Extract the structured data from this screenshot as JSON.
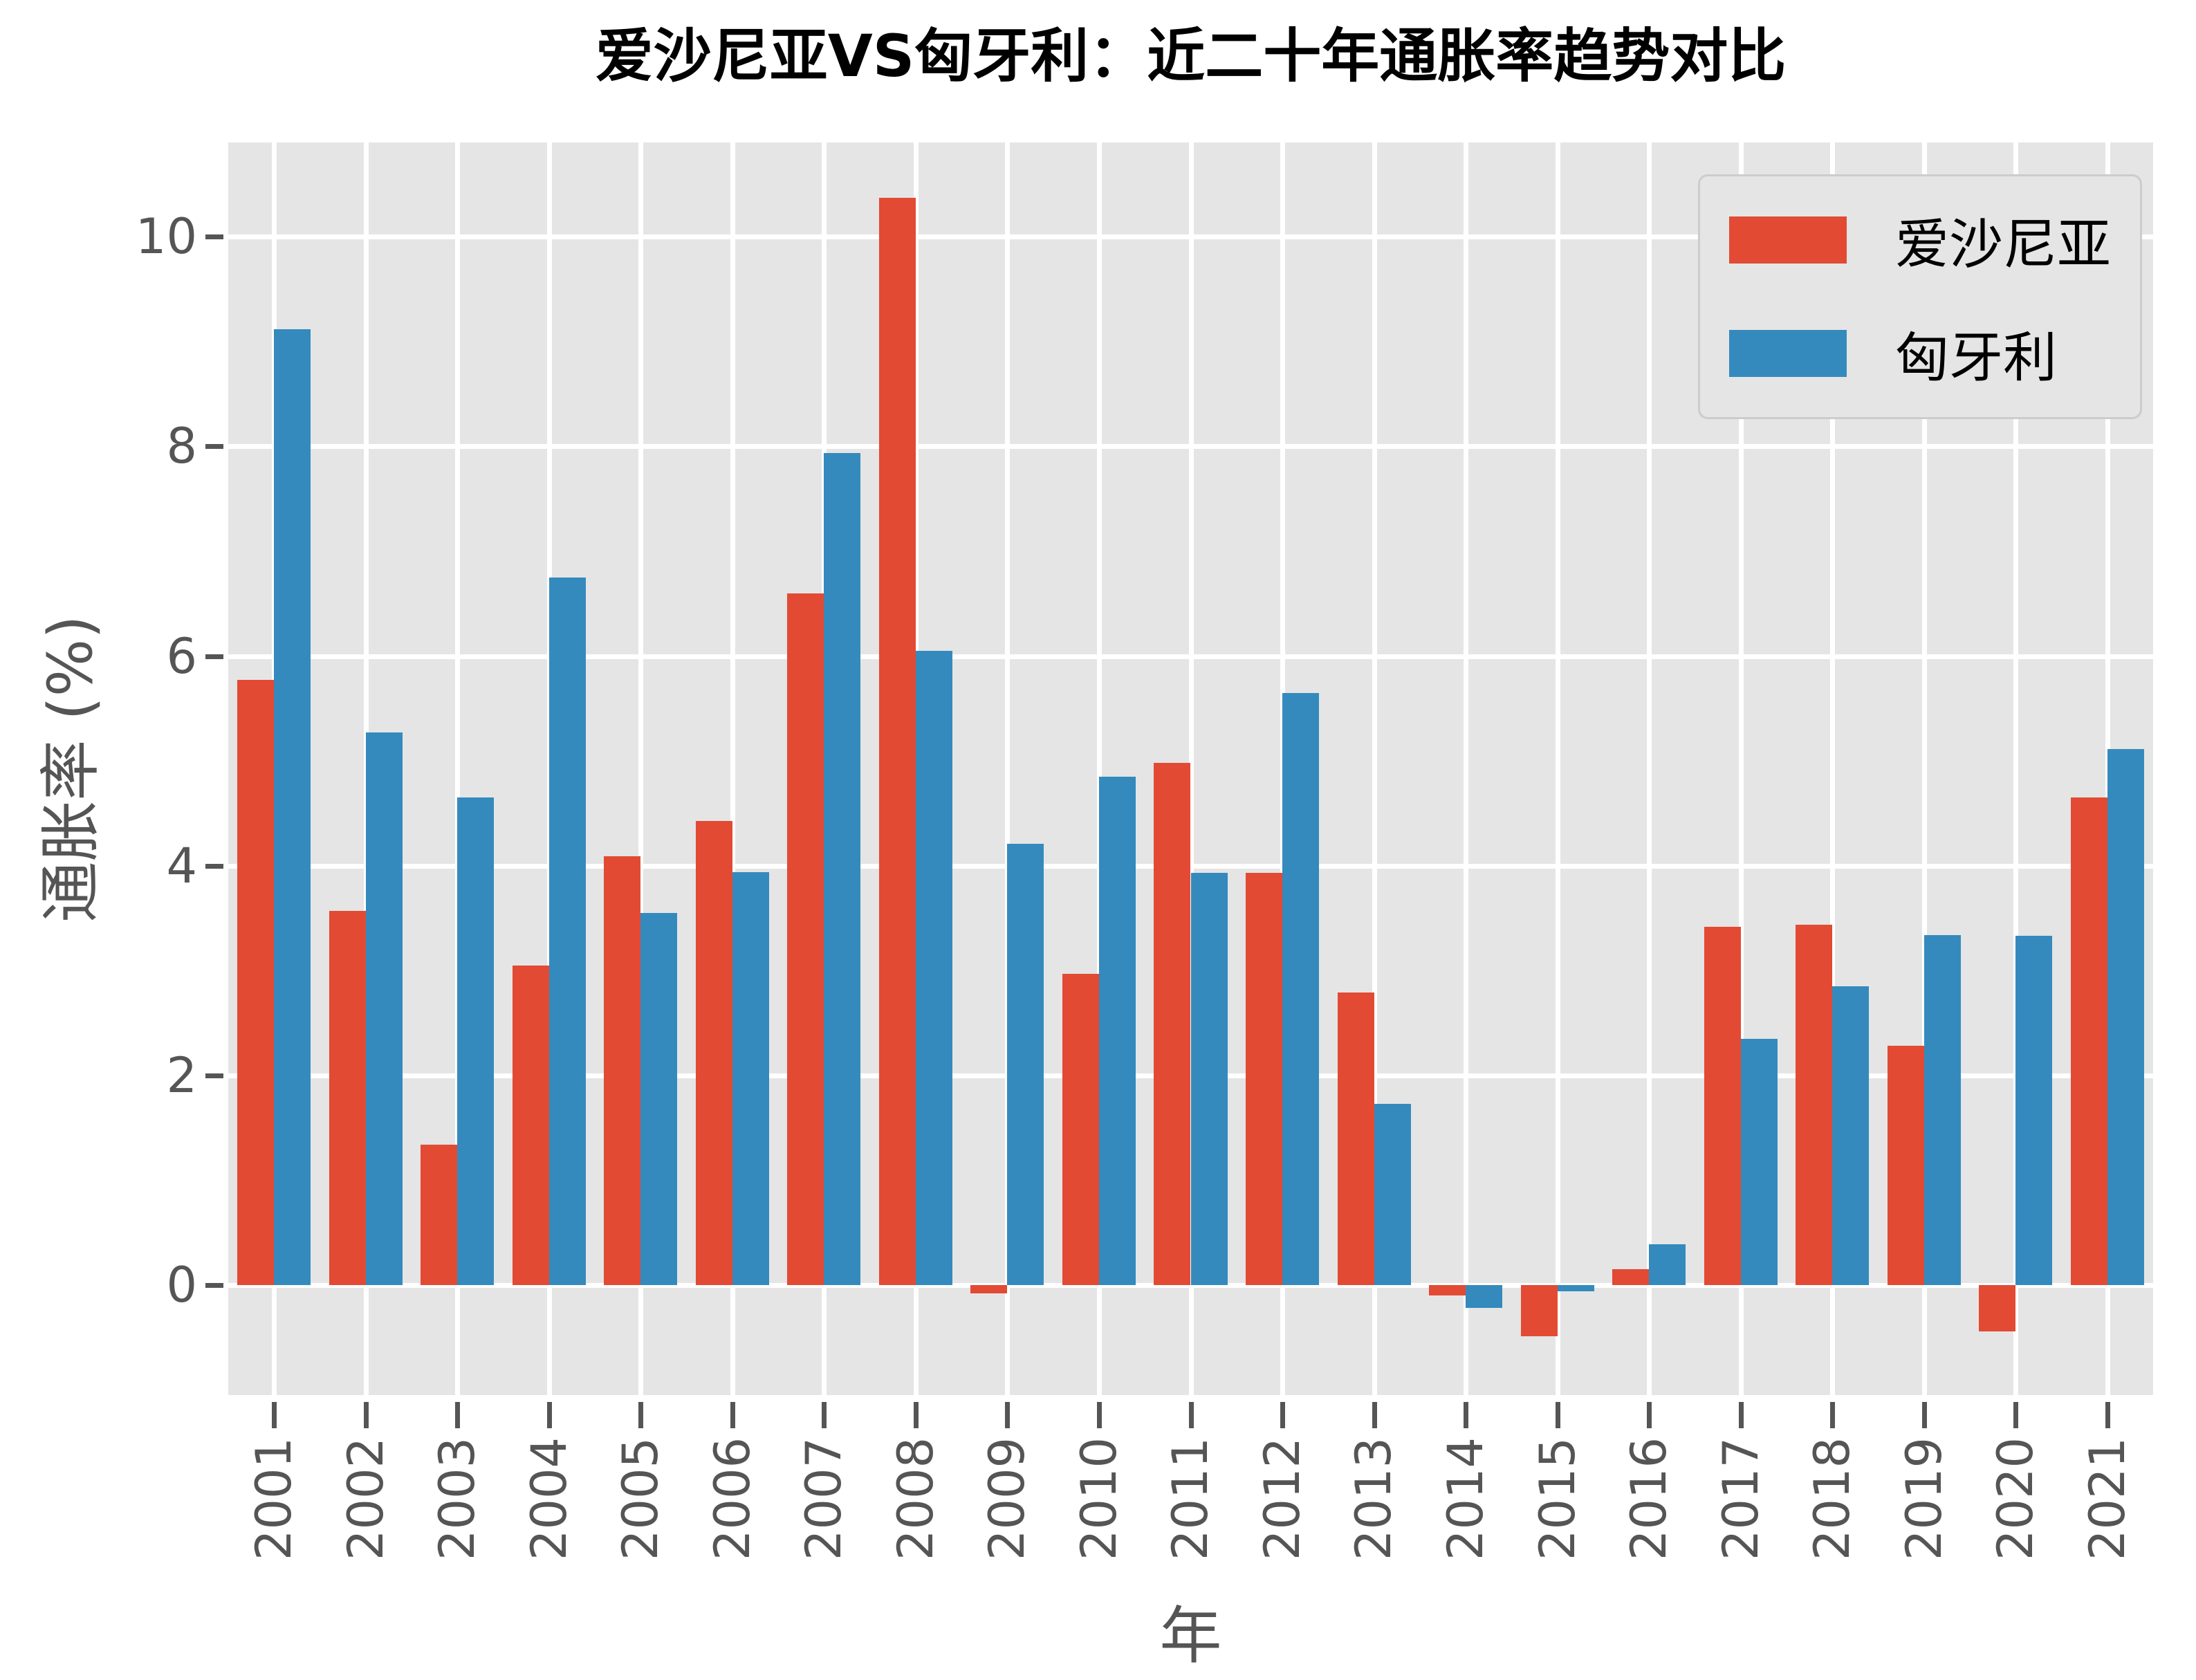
{
  "chart_data": {
    "type": "bar",
    "title": "爱沙尼亚VS匈牙利：近二十年通胀率趋势对比",
    "xlabel": "年",
    "ylabel": "通胀率 (%)",
    "categories": [
      "2001",
      "2002",
      "2003",
      "2004",
      "2005",
      "2006",
      "2007",
      "2008",
      "2009",
      "2010",
      "2011",
      "2012",
      "2013",
      "2014",
      "2015",
      "2016",
      "2017",
      "2018",
      "2019",
      "2020",
      "2021"
    ],
    "series": [
      {
        "name": "爱沙尼亚",
        "color": "#E24A33",
        "values": [
          5.77,
          3.57,
          1.34,
          3.05,
          4.09,
          4.43,
          6.6,
          10.37,
          -0.08,
          2.97,
          4.98,
          3.93,
          2.79,
          -0.1,
          -0.49,
          0.15,
          3.42,
          3.44,
          2.28,
          -0.44,
          4.65
        ]
      },
      {
        "name": "匈牙利",
        "color": "#348ABD",
        "values": [
          9.12,
          5.27,
          4.65,
          6.75,
          3.55,
          3.94,
          7.94,
          6.05,
          4.21,
          4.85,
          3.93,
          5.65,
          1.73,
          -0.22,
          -0.06,
          0.39,
          2.35,
          2.85,
          3.34,
          3.33,
          5.11
        ]
      }
    ],
    "yticks": [
      0,
      2,
      4,
      6,
      8,
      10
    ],
    "ylim": [
      -1.05,
      10.9
    ],
    "bar_width_units": 0.4,
    "grid": true,
    "legend_position": "upper right",
    "colors": {
      "figure_bg": "#FFFFFF",
      "plot_bg": "#E5E5E5",
      "grid": "#FFFFFF",
      "tick": "#555555",
      "title": "#000000"
    }
  }
}
